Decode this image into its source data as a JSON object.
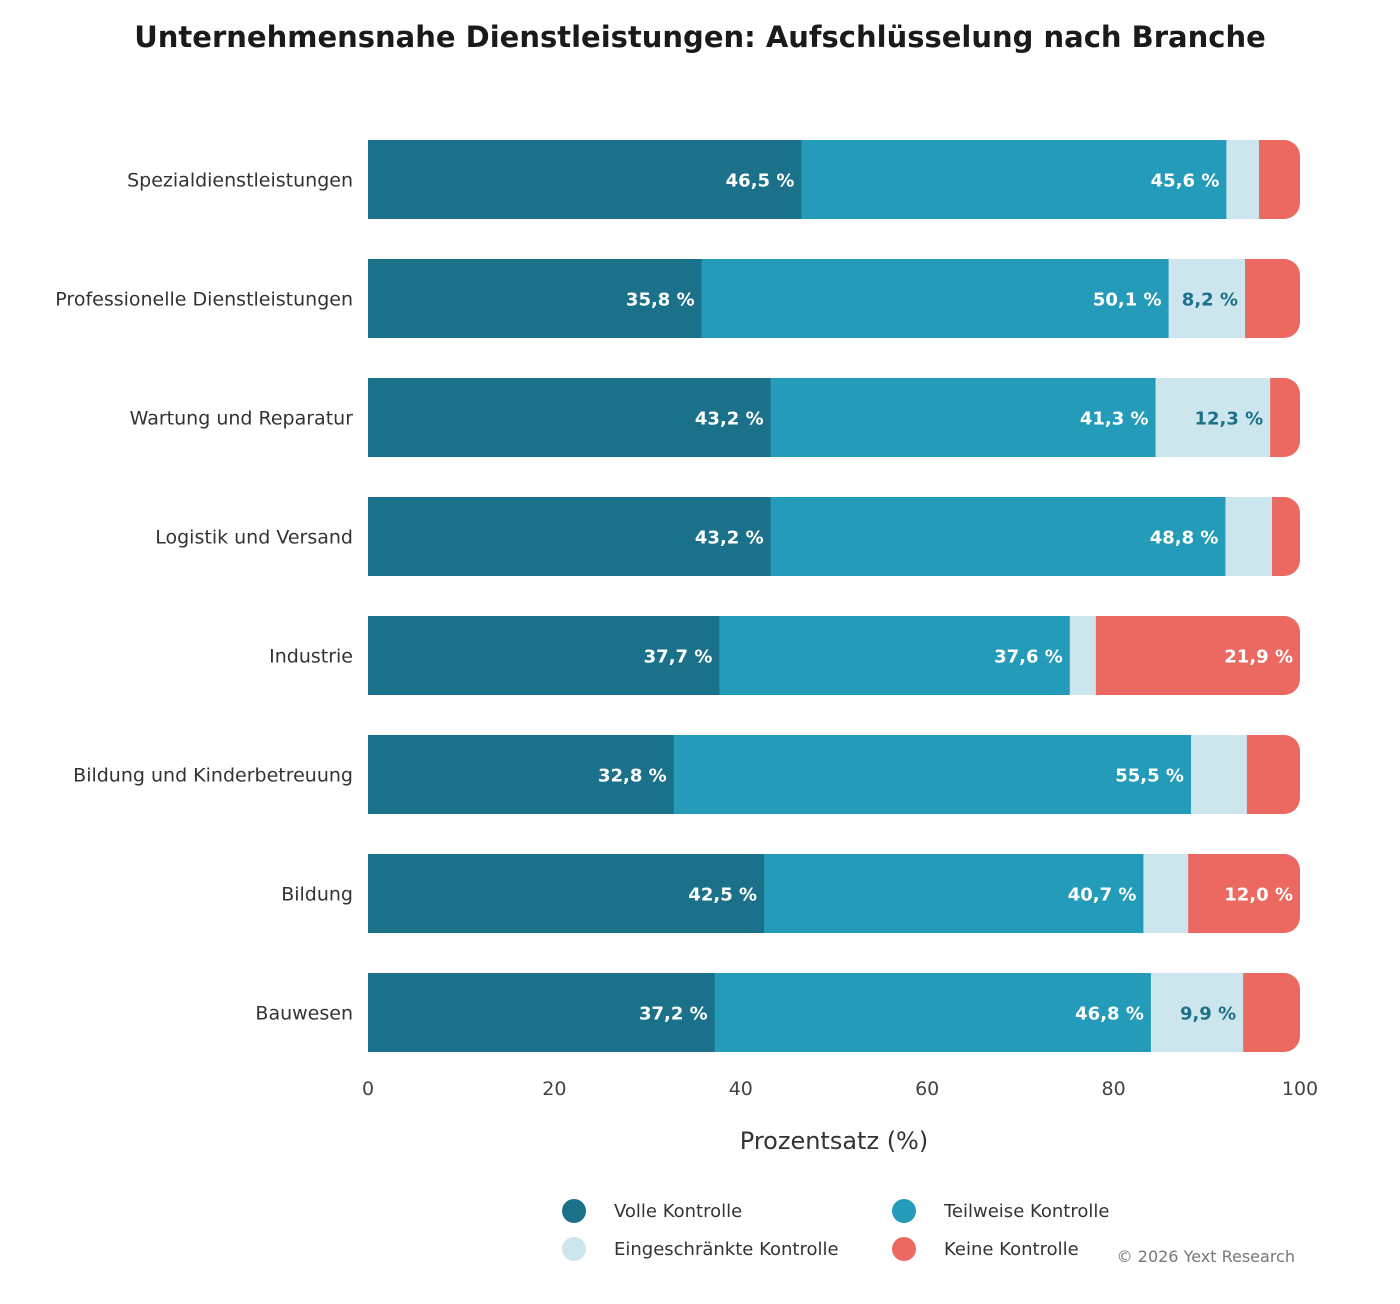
{
  "chart_data": {
    "type": "bar",
    "orientation": "horizontal",
    "stacked": true,
    "title": "Unternehmensnahe Dienstleistungen: Aufschlüsselung nach Branche",
    "xlabel": "Prozentsatz (%)",
    "ylabel": "",
    "xlim": [
      0,
      100
    ],
    "xticks": [
      "0",
      "20",
      "40",
      "60",
      "80",
      "100"
    ],
    "grid": false,
    "legend_position": "bottom",
    "categories": [
      "Spezialdienstleistungen",
      "Professionelle Dienstleistungen",
      "Wartung und Reparatur",
      "Logistik und Versand",
      "Industrie",
      "Bildung und Kinderbetreuung",
      "Bildung",
      "Bauwesen"
    ],
    "series": [
      {
        "name": "Volle Kontrolle",
        "color": "#1c718a",
        "values": [
          46.5,
          35.8,
          43.2,
          43.2,
          37.7,
          32.8,
          42.5,
          37.2
        ],
        "labels": [
          "46,5 %",
          "35,8 %",
          "43,2 %",
          "43,2 %",
          "37,7 %",
          "32,8 %",
          "42,5 %",
          "37,2 %"
        ]
      },
      {
        "name": "Teilweise Kontrolle",
        "color": "#259bba",
        "values": [
          45.6,
          50.1,
          41.3,
          48.8,
          37.6,
          55.5,
          40.7,
          46.8
        ],
        "labels": [
          "45,6 %",
          "50,1 %",
          "41,3 %",
          "48,8 %",
          "37,6 %",
          "55,5 %",
          "40,7 %",
          "46,8 %"
        ]
      },
      {
        "name": "Eingeschränkte Kontrolle",
        "color": "#cde6ed",
        "values": [
          3.5,
          8.2,
          12.3,
          5.0,
          2.8,
          6.0,
          4.8,
          9.9
        ],
        "labels": [
          "",
          "8,2 %",
          "12,3 %",
          "",
          "",
          "",
          "",
          "9,9 %"
        ]
      },
      {
        "name": "Keine Kontrolle",
        "color": "#ec6962",
        "values": [
          4.4,
          5.9,
          3.2,
          3.0,
          21.9,
          5.7,
          12.0,
          6.1
        ],
        "labels": [
          "",
          "",
          "",
          "",
          "21,9 %",
          "",
          "12,0 %",
          ""
        ]
      }
    ]
  },
  "footer": {
    "credit": "© 2026 Yext Research"
  }
}
